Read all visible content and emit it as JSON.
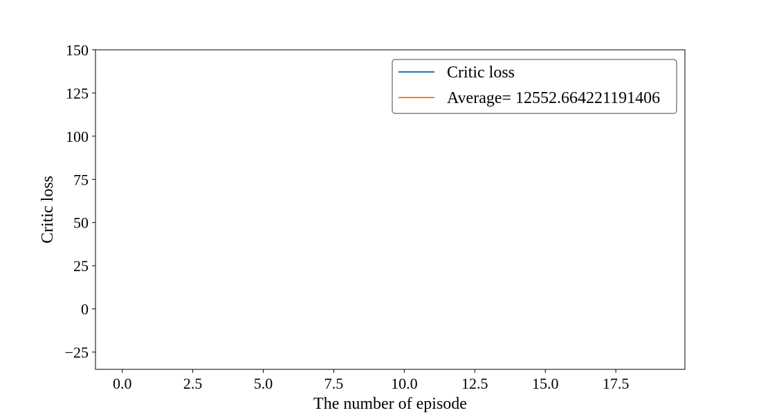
{
  "chart_data": {
    "type": "line",
    "title": "",
    "xlabel": "The number of episode",
    "ylabel": "Critic loss",
    "xlim": [
      -0.95,
      19.95
    ],
    "ylim": [
      -35,
      150
    ],
    "xticks": [
      0.0,
      2.5,
      5.0,
      7.5,
      10.0,
      12.5,
      15.0,
      17.5
    ],
    "xtick_labels": [
      "0.0",
      "2.5",
      "5.0",
      "7.5",
      "10.0",
      "12.5",
      "15.0",
      "17.5"
    ],
    "yticks": [
      -25,
      0,
      25,
      50,
      75,
      100,
      125,
      150
    ],
    "ytick_labels": [
      "−25",
      "0",
      "25",
      "50",
      "75",
      "100",
      "125",
      "150"
    ],
    "grid": false,
    "legend_position": "top-right",
    "series": [
      {
        "name": "Critic loss",
        "color": "#1f77b4",
        "x": [],
        "y": []
      },
      {
        "name": "Average= 12552.664221191406",
        "color": "#ff7f0e",
        "x": [],
        "y": []
      }
    ]
  }
}
